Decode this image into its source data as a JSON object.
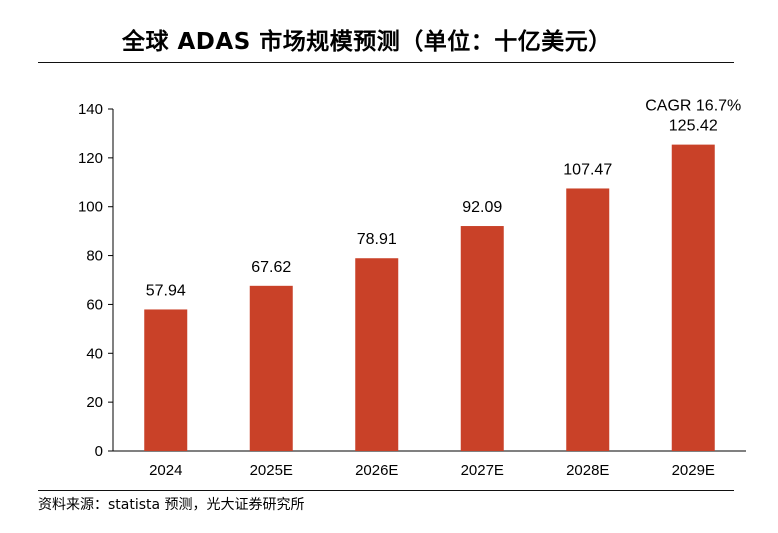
{
  "title": "全球 ADAS 市场规模预测（单位：十亿美元）",
  "source": "资料来源：statista 预测，光大证券研究所",
  "colors": {
    "bar": "#C94128",
    "axis": "#000000"
  },
  "chart_data": {
    "type": "bar",
    "title": "全球 ADAS 市场规模预测（单位：十亿美元）",
    "xlabel": "",
    "ylabel": "",
    "categories": [
      "2024",
      "2025E",
      "2026E",
      "2027E",
      "2028E",
      "2029E"
    ],
    "values": [
      57.94,
      67.62,
      78.91,
      92.09,
      107.47,
      125.42
    ],
    "value_labels": [
      "57.94",
      "67.62",
      "78.91",
      "92.09",
      "107.47",
      "125.42"
    ],
    "ylim": [
      0,
      140
    ],
    "yticks": [
      0,
      20,
      40,
      60,
      80,
      100,
      120,
      140
    ],
    "grid": false,
    "annotation": "CAGR 16.7%"
  }
}
